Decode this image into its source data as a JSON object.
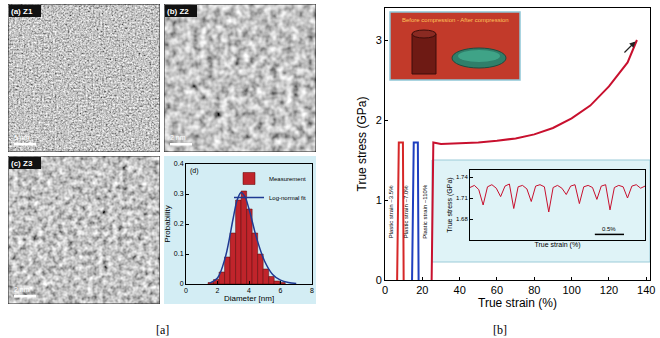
{
  "chart_data": [
    {
      "type": "histogram",
      "title": "(d)",
      "x_label": "Diameter [nm]",
      "y_label": "Probability",
      "series": [
        {
          "name": "Measurement",
          "type": "bar",
          "color": "#c0242b",
          "bins": [
            1.4,
            1.75,
            2.1,
            2.45,
            2.8,
            3.15,
            3.5,
            3.85,
            4.2,
            4.55,
            4.9,
            5.25,
            5.6,
            5.95,
            6.3
          ],
          "values": [
            0.005,
            0.015,
            0.04,
            0.09,
            0.17,
            0.28,
            0.31,
            0.25,
            0.17,
            0.1,
            0.05,
            0.025,
            0.01,
            0.005
          ]
        },
        {
          "name": "Log-normal fit",
          "type": "line",
          "color": "#1f3a93",
          "x": [
            1.5,
            2,
            2.5,
            3,
            3.25,
            3.5,
            3.75,
            4,
            4.5,
            5,
            5.5,
            6,
            6.5,
            7
          ],
          "values": [
            0.003,
            0.02,
            0.09,
            0.22,
            0.28,
            0.305,
            0.29,
            0.25,
            0.15,
            0.075,
            0.032,
            0.013,
            0.005,
            0.002
          ]
        }
      ],
      "xlim": [
        0,
        8
      ],
      "xticks": [
        0,
        2,
        4,
        6,
        8
      ],
      "ylim": [
        0,
        0.4
      ],
      "yticks": [
        0,
        0.1,
        0.2,
        0.3,
        0.4
      ],
      "grid": false,
      "legend": "upper right"
    },
    {
      "type": "line",
      "x_label": "True strain (%)",
      "y_label": "True stress (GPa)",
      "series": [
        {
          "label": "Plastic strain ~3.5%",
          "color": "#d62728",
          "x": [
            6.5,
            7.4,
            9.6,
            10.0
          ],
          "values": [
            0,
            1.72,
            1.72,
            0
          ]
        },
        {
          "label": "Plastic strain ~7.0%",
          "color": "#1f3fbf",
          "x": [
            14.5,
            15.4,
            17.6,
            18.0
          ],
          "values": [
            0,
            1.72,
            1.72,
            0
          ]
        },
        {
          "label": "Plastic strain ~110%",
          "color": "#c8102e",
          "x": [
            25,
            25.9,
            30,
            40,
            50,
            60,
            70,
            80,
            90,
            100,
            110,
            120,
            130,
            135
          ],
          "values": [
            0,
            1.72,
            1.7,
            1.71,
            1.72,
            1.74,
            1.77,
            1.82,
            1.9,
            2.02,
            2.18,
            2.42,
            2.72,
            3.0
          ]
        }
      ],
      "xlim": [
        0,
        142
      ],
      "xticks": [
        0,
        20,
        40,
        60,
        80,
        100,
        120,
        140
      ],
      "ylim": [
        0,
        3.4
      ],
      "yticks": [
        0,
        1,
        2,
        3
      ],
      "grid": false,
      "inset_photo": {
        "caption": "Before compression - After compression"
      }
    },
    {
      "type": "line",
      "x_label": "True strain (%)",
      "y_label": "True stress (GPa)",
      "color": "#c8102e",
      "x": [
        0,
        0.075,
        0.15,
        0.225,
        0.3,
        0.375,
        0.45,
        0.525,
        0.6,
        0.675,
        0.75,
        0.825,
        0.9,
        0.975,
        1.05,
        1.125,
        1.2,
        1.275,
        1.35,
        1.425,
        1.5,
        1.575,
        1.65,
        1.725,
        1.8,
        1.875,
        1.95,
        2.025,
        2.1,
        2.175,
        2.25,
        2.325,
        2.4,
        2.475,
        2.55,
        2.625,
        2.7,
        2.775,
        2.85,
        2.925,
        3.0
      ],
      "values": [
        1.725,
        1.728,
        1.722,
        1.7,
        1.726,
        1.729,
        1.724,
        1.712,
        1.727,
        1.73,
        1.695,
        1.726,
        1.728,
        1.723,
        1.705,
        1.727,
        1.729,
        1.726,
        1.69,
        1.725,
        1.728,
        1.724,
        1.715,
        1.727,
        1.729,
        1.702,
        1.726,
        1.728,
        1.725,
        1.708,
        1.727,
        1.729,
        1.693,
        1.725,
        1.728,
        1.726,
        1.71,
        1.727,
        1.729,
        1.724,
        1.727
      ],
      "xlim": [
        0,
        3
      ],
      "ylim": [
        1.65,
        1.75
      ],
      "yticks": [
        1.68,
        1.71,
        1.74
      ],
      "tick_labels": "y",
      "grid": false,
      "scale_bar": {
        "value": 0.5,
        "label": "0.5%"
      }
    }
  ],
  "micrographs": [
    {
      "label": "(a) Z1",
      "scale_bar": "5 nm"
    },
    {
      "label": "(b) Z2",
      "scale_bar": "2 nm"
    },
    {
      "label": "(c) Z3",
      "scale_bar": "2 nm"
    }
  ],
  "panel_labels": [
    "[a]",
    "[b]"
  ]
}
